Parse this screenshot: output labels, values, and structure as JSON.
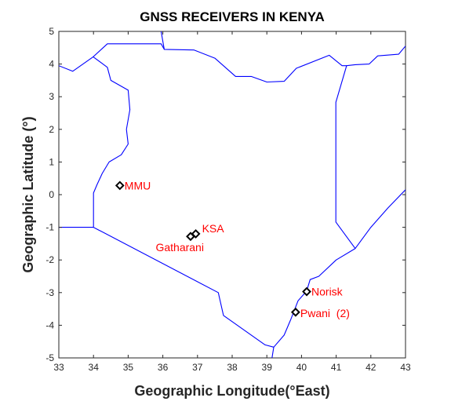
{
  "map": {
    "title": "GNSS RECEIVERS IN KENYA",
    "xlabel": "Geographic Longitude(°East)",
    "ylabel": "Geographic Latitude (°)",
    "xlim": [
      33,
      43
    ],
    "ylim": [
      -5,
      5
    ],
    "x_ticks": [
      "33",
      "34",
      "35",
      "36",
      "37",
      "38",
      "39",
      "40",
      "41",
      "42",
      "43"
    ],
    "y_ticks": [
      "5",
      "4",
      "3",
      "2",
      "1",
      "0",
      "-1",
      "-2",
      "-3",
      "-4",
      "-5"
    ],
    "colors": {
      "border": "#0000ff",
      "station_label": "#ff0000",
      "marker": "#000000",
      "axis": "#262626"
    },
    "stations": [
      {
        "label": "MMU",
        "lon": 34.76,
        "lat": 0.28
      },
      {
        "label": "KSA",
        "lon": 36.95,
        "lat": -1.2
      },
      {
        "label": "Gatharani",
        "lon": 36.8,
        "lat": -1.28
      },
      {
        "label": "Norisk",
        "lon": 40.15,
        "lat": -2.97
      },
      {
        "label": "Pwani  (2)",
        "lon": 39.83,
        "lat": -3.6
      }
    ],
    "borders": [
      {
        "name": "kenya-border",
        "points": [
          [
            34.0,
            -1.0
          ],
          [
            34.0,
            0.05
          ],
          [
            34.1,
            0.3
          ],
          [
            34.25,
            0.65
          ],
          [
            34.45,
            1.0
          ],
          [
            34.8,
            1.22
          ],
          [
            35.0,
            1.55
          ],
          [
            34.95,
            2.0
          ],
          [
            35.05,
            2.6
          ],
          [
            35.0,
            3.2
          ],
          [
            34.5,
            3.5
          ],
          [
            34.4,
            3.9
          ],
          [
            33.99,
            4.22
          ],
          [
            34.4,
            4.62
          ],
          [
            35.95,
            4.62
          ],
          [
            36.04,
            4.45
          ],
          [
            36.9,
            4.43
          ],
          [
            37.5,
            4.18
          ],
          [
            38.1,
            3.62
          ],
          [
            38.55,
            3.62
          ],
          [
            39.0,
            3.45
          ],
          [
            39.5,
            3.47
          ],
          [
            39.85,
            3.87
          ],
          [
            40.8,
            4.27
          ],
          [
            41.17,
            3.95
          ],
          [
            41.3,
            3.95
          ],
          [
            40.99,
            2.83
          ],
          [
            40.99,
            -0.84
          ],
          [
            41.55,
            -1.65
          ],
          [
            41.0,
            -2.0
          ],
          [
            40.5,
            -2.5
          ],
          [
            40.25,
            -2.6
          ],
          [
            40.15,
            -2.95
          ],
          [
            39.9,
            -3.25
          ],
          [
            39.7,
            -3.8
          ],
          [
            39.5,
            -4.3
          ],
          [
            39.2,
            -4.67
          ],
          [
            38.95,
            -4.6
          ],
          [
            37.75,
            -3.7
          ],
          [
            37.6,
            -3.0
          ],
          [
            34.0,
            -1.0
          ]
        ]
      },
      {
        "name": "somalia-border",
        "points": [
          [
            41.3,
            3.95
          ],
          [
            41.55,
            3.98
          ],
          [
            41.95,
            4.0
          ],
          [
            42.2,
            4.25
          ],
          [
            42.8,
            4.3
          ],
          [
            43.0,
            4.55
          ]
        ]
      },
      {
        "name": "ethiopia-border",
        "points": [
          [
            36.04,
            4.45
          ],
          [
            35.95,
            5.0
          ]
        ]
      },
      {
        "name": "south-sudan-uganda-border",
        "points": [
          [
            33.0,
            3.95
          ],
          [
            33.4,
            3.78
          ],
          [
            33.99,
            4.22
          ]
        ]
      },
      {
        "name": "lake-victoria-border",
        "points": [
          [
            33.0,
            -1.0
          ],
          [
            34.0,
            -1.0
          ]
        ]
      },
      {
        "name": "somalia-coast",
        "points": [
          [
            41.55,
            -1.65
          ],
          [
            42.0,
            -1.0
          ],
          [
            42.5,
            -0.4
          ],
          [
            43.0,
            0.15
          ]
        ]
      },
      {
        "name": "tanzania-coast",
        "points": [
          [
            39.2,
            -4.67
          ],
          [
            39.15,
            -5.0
          ]
        ]
      }
    ]
  }
}
